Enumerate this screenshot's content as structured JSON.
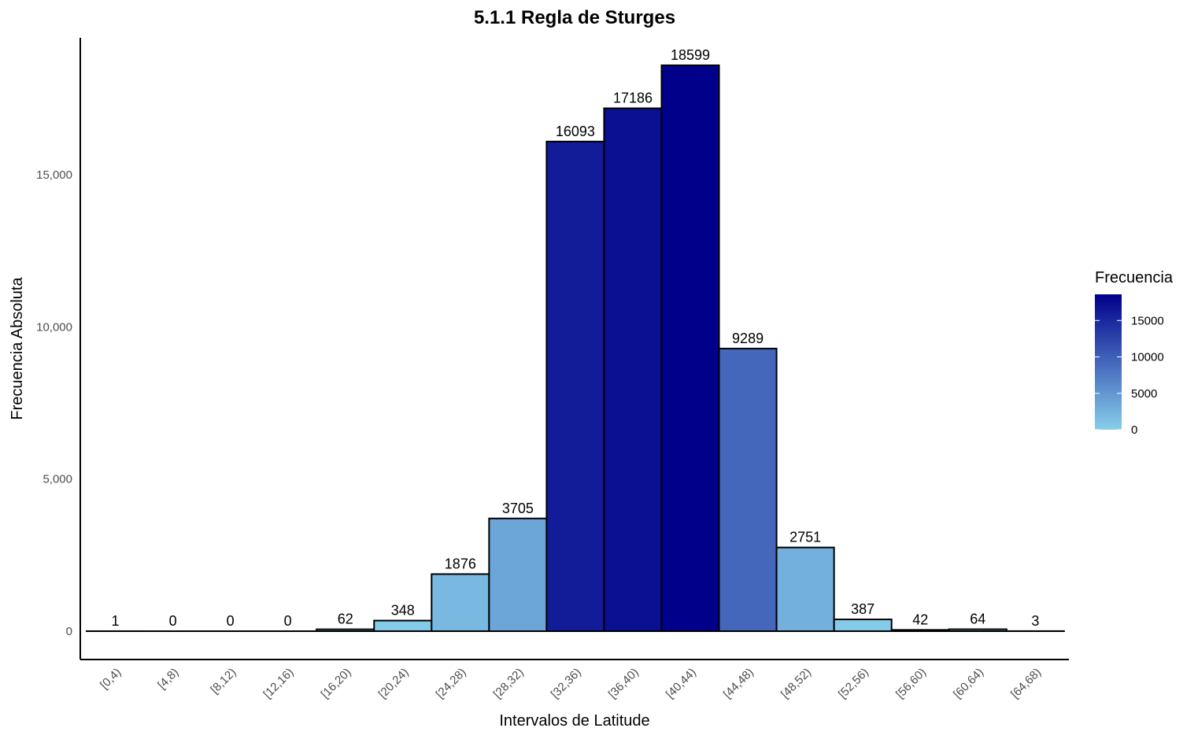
{
  "chart_data": {
    "type": "bar",
    "title": "5.1.1 Regla de Sturges",
    "xlabel": "Intervalos de Latitude",
    "ylabel": "Frecuencia Absoluta",
    "categories": [
      "[0,4)",
      "[4,8)",
      "[8,12)",
      "[12,16)",
      "[16,20)",
      "[20,24)",
      "[24,28)",
      "[28,32)",
      "[32,36)",
      "[36,40)",
      "[40,44)",
      "[44,48)",
      "[48,52)",
      "[52,56)",
      "[56,60)",
      "[60,64)",
      "[64,68)"
    ],
    "values": [
      1,
      0,
      0,
      0,
      62,
      348,
      1876,
      3705,
      16093,
      17186,
      18599,
      9289,
      2751,
      387,
      42,
      64,
      3
    ],
    "data_labels": [
      "1",
      "0",
      "0",
      "0",
      "62",
      "348",
      "1876",
      "3705",
      "16093",
      "17186",
      "18599",
      "9289",
      "2751",
      "387",
      "42",
      "64",
      "3"
    ],
    "ylim": [
      0,
      19500
    ],
    "yticks": [
      0,
      5000,
      10000,
      15000
    ],
    "ytick_labels": [
      "0",
      "5,000",
      "10,000",
      "15,000"
    ],
    "grid": false,
    "legend": {
      "title": "Frecuencia",
      "placement": "right",
      "type": "colorbar",
      "range": [
        0,
        18599
      ],
      "ticks": [
        0,
        5000,
        10000,
        15000
      ],
      "tick_labels": [
        "0",
        "5000",
        "10000",
        "15000"
      ],
      "low_color": "#87CEEB",
      "high_color": "#00008B"
    },
    "bar_outline_color": "#000000"
  }
}
